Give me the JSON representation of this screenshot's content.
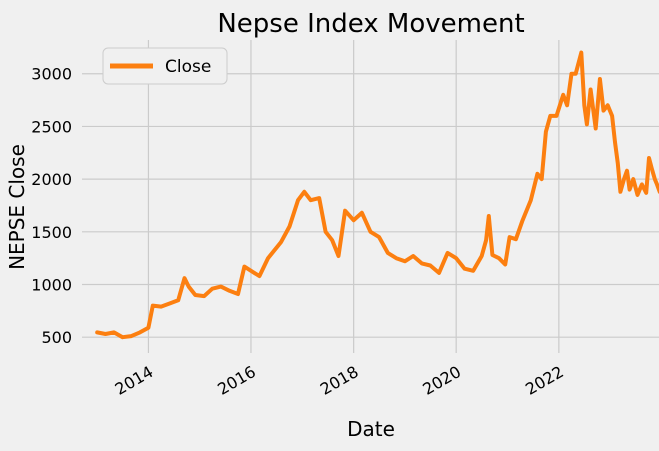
{
  "chart_data": {
    "type": "line",
    "title": "Nepse Index Movement",
    "xlabel": "Date",
    "ylabel": "NEPSE Close",
    "x_ticks": [
      "2014",
      "2016",
      "2018",
      "2020",
      "2022"
    ],
    "y_ticks": [
      500,
      1000,
      1500,
      2000,
      2500,
      3000
    ],
    "xlim": [
      "2012-09-15",
      "2023-12-15"
    ],
    "ylim": [
      350,
      3320
    ],
    "grid": true,
    "legend": "top-left",
    "series": [
      {
        "name": "Close",
        "color": "#fc7f10",
        "points": [
          [
            "2013-01-01",
            545
          ],
          [
            "2013-03-01",
            530
          ],
          [
            "2013-05-01",
            545
          ],
          [
            "2013-07-01",
            500
          ],
          [
            "2013-09-01",
            510
          ],
          [
            "2013-11-01",
            545
          ],
          [
            "2014-01-01",
            590
          ],
          [
            "2014-02-01",
            800
          ],
          [
            "2014-04-01",
            790
          ],
          [
            "2014-06-01",
            820
          ],
          [
            "2014-08-01",
            850
          ],
          [
            "2014-09-15",
            1060
          ],
          [
            "2014-10-15",
            980
          ],
          [
            "2014-12-01",
            900
          ],
          [
            "2015-02-01",
            890
          ],
          [
            "2015-04-01",
            960
          ],
          [
            "2015-06-01",
            980
          ],
          [
            "2015-08-01",
            940
          ],
          [
            "2015-10-01",
            910
          ],
          [
            "2015-11-15",
            1170
          ],
          [
            "2016-01-01",
            1130
          ],
          [
            "2016-03-01",
            1080
          ],
          [
            "2016-05-01",
            1250
          ],
          [
            "2016-08-01",
            1400
          ],
          [
            "2016-10-01",
            1550
          ],
          [
            "2016-12-01",
            1800
          ],
          [
            "2017-01-15",
            1880
          ],
          [
            "2017-03-01",
            1800
          ],
          [
            "2017-05-01",
            1820
          ],
          [
            "2017-06-15",
            1500
          ],
          [
            "2017-08-01",
            1420
          ],
          [
            "2017-09-15",
            1270
          ],
          [
            "2017-11-01",
            1700
          ],
          [
            "2018-01-01",
            1610
          ],
          [
            "2018-03-01",
            1680
          ],
          [
            "2018-05-01",
            1500
          ],
          [
            "2018-07-01",
            1450
          ],
          [
            "2018-09-01",
            1300
          ],
          [
            "2018-11-01",
            1250
          ],
          [
            "2019-01-01",
            1220
          ],
          [
            "2019-03-01",
            1270
          ],
          [
            "2019-05-01",
            1200
          ],
          [
            "2019-07-01",
            1180
          ],
          [
            "2019-09-01",
            1110
          ],
          [
            "2019-11-01",
            1300
          ],
          [
            "2020-01-01",
            1250
          ],
          [
            "2020-03-01",
            1150
          ],
          [
            "2020-05-01",
            1130
          ],
          [
            "2020-07-01",
            1270
          ],
          [
            "2020-08-01",
            1420
          ],
          [
            "2020-08-20",
            1650
          ],
          [
            "2020-09-15",
            1280
          ],
          [
            "2020-11-01",
            1250
          ],
          [
            "2020-12-15",
            1190
          ],
          [
            "2021-01-15",
            1450
          ],
          [
            "2021-03-01",
            1430
          ],
          [
            "2021-04-15",
            1600
          ],
          [
            "2021-06-15",
            1800
          ],
          [
            "2021-08-01",
            2050
          ],
          [
            "2021-09-01",
            2000
          ],
          [
            "2021-10-01",
            2450
          ],
          [
            "2021-11-01",
            2600
          ],
          [
            "2021-12-15",
            2600
          ],
          [
            "2022-02-01",
            2800
          ],
          [
            "2022-03-01",
            2700
          ],
          [
            "2022-04-01",
            3000
          ],
          [
            "2022-05-01",
            3000
          ],
          [
            "2022-06-10",
            3200
          ],
          [
            "2022-07-01",
            2700
          ],
          [
            "2022-07-20",
            2520
          ],
          [
            "2022-08-15",
            2850
          ],
          [
            "2022-09-20",
            2480
          ],
          [
            "2022-10-20",
            2950
          ],
          [
            "2022-11-15",
            2650
          ],
          [
            "2022-12-15",
            2700
          ],
          [
            "2023-01-15",
            2600
          ],
          [
            "2023-02-05",
            2350
          ],
          [
            "2023-02-25",
            2150
          ],
          [
            "2023-03-15",
            1880
          ],
          [
            "2023-04-10",
            2000
          ],
          [
            "2023-05-01",
            2080
          ],
          [
            "2023-05-20",
            1900
          ],
          [
            "2023-06-15",
            2000
          ],
          [
            "2023-07-15",
            1850
          ],
          [
            "2023-08-15",
            1950
          ],
          [
            "2023-09-15",
            1870
          ],
          [
            "2023-10-05",
            2200
          ],
          [
            "2023-10-25",
            2100
          ],
          [
            "2023-11-15",
            2000
          ],
          [
            "2023-12-01",
            1950
          ],
          [
            "2023-12-20",
            1880
          ],
          [
            "2024-01-10",
            1850
          ]
        ]
      }
    ]
  }
}
